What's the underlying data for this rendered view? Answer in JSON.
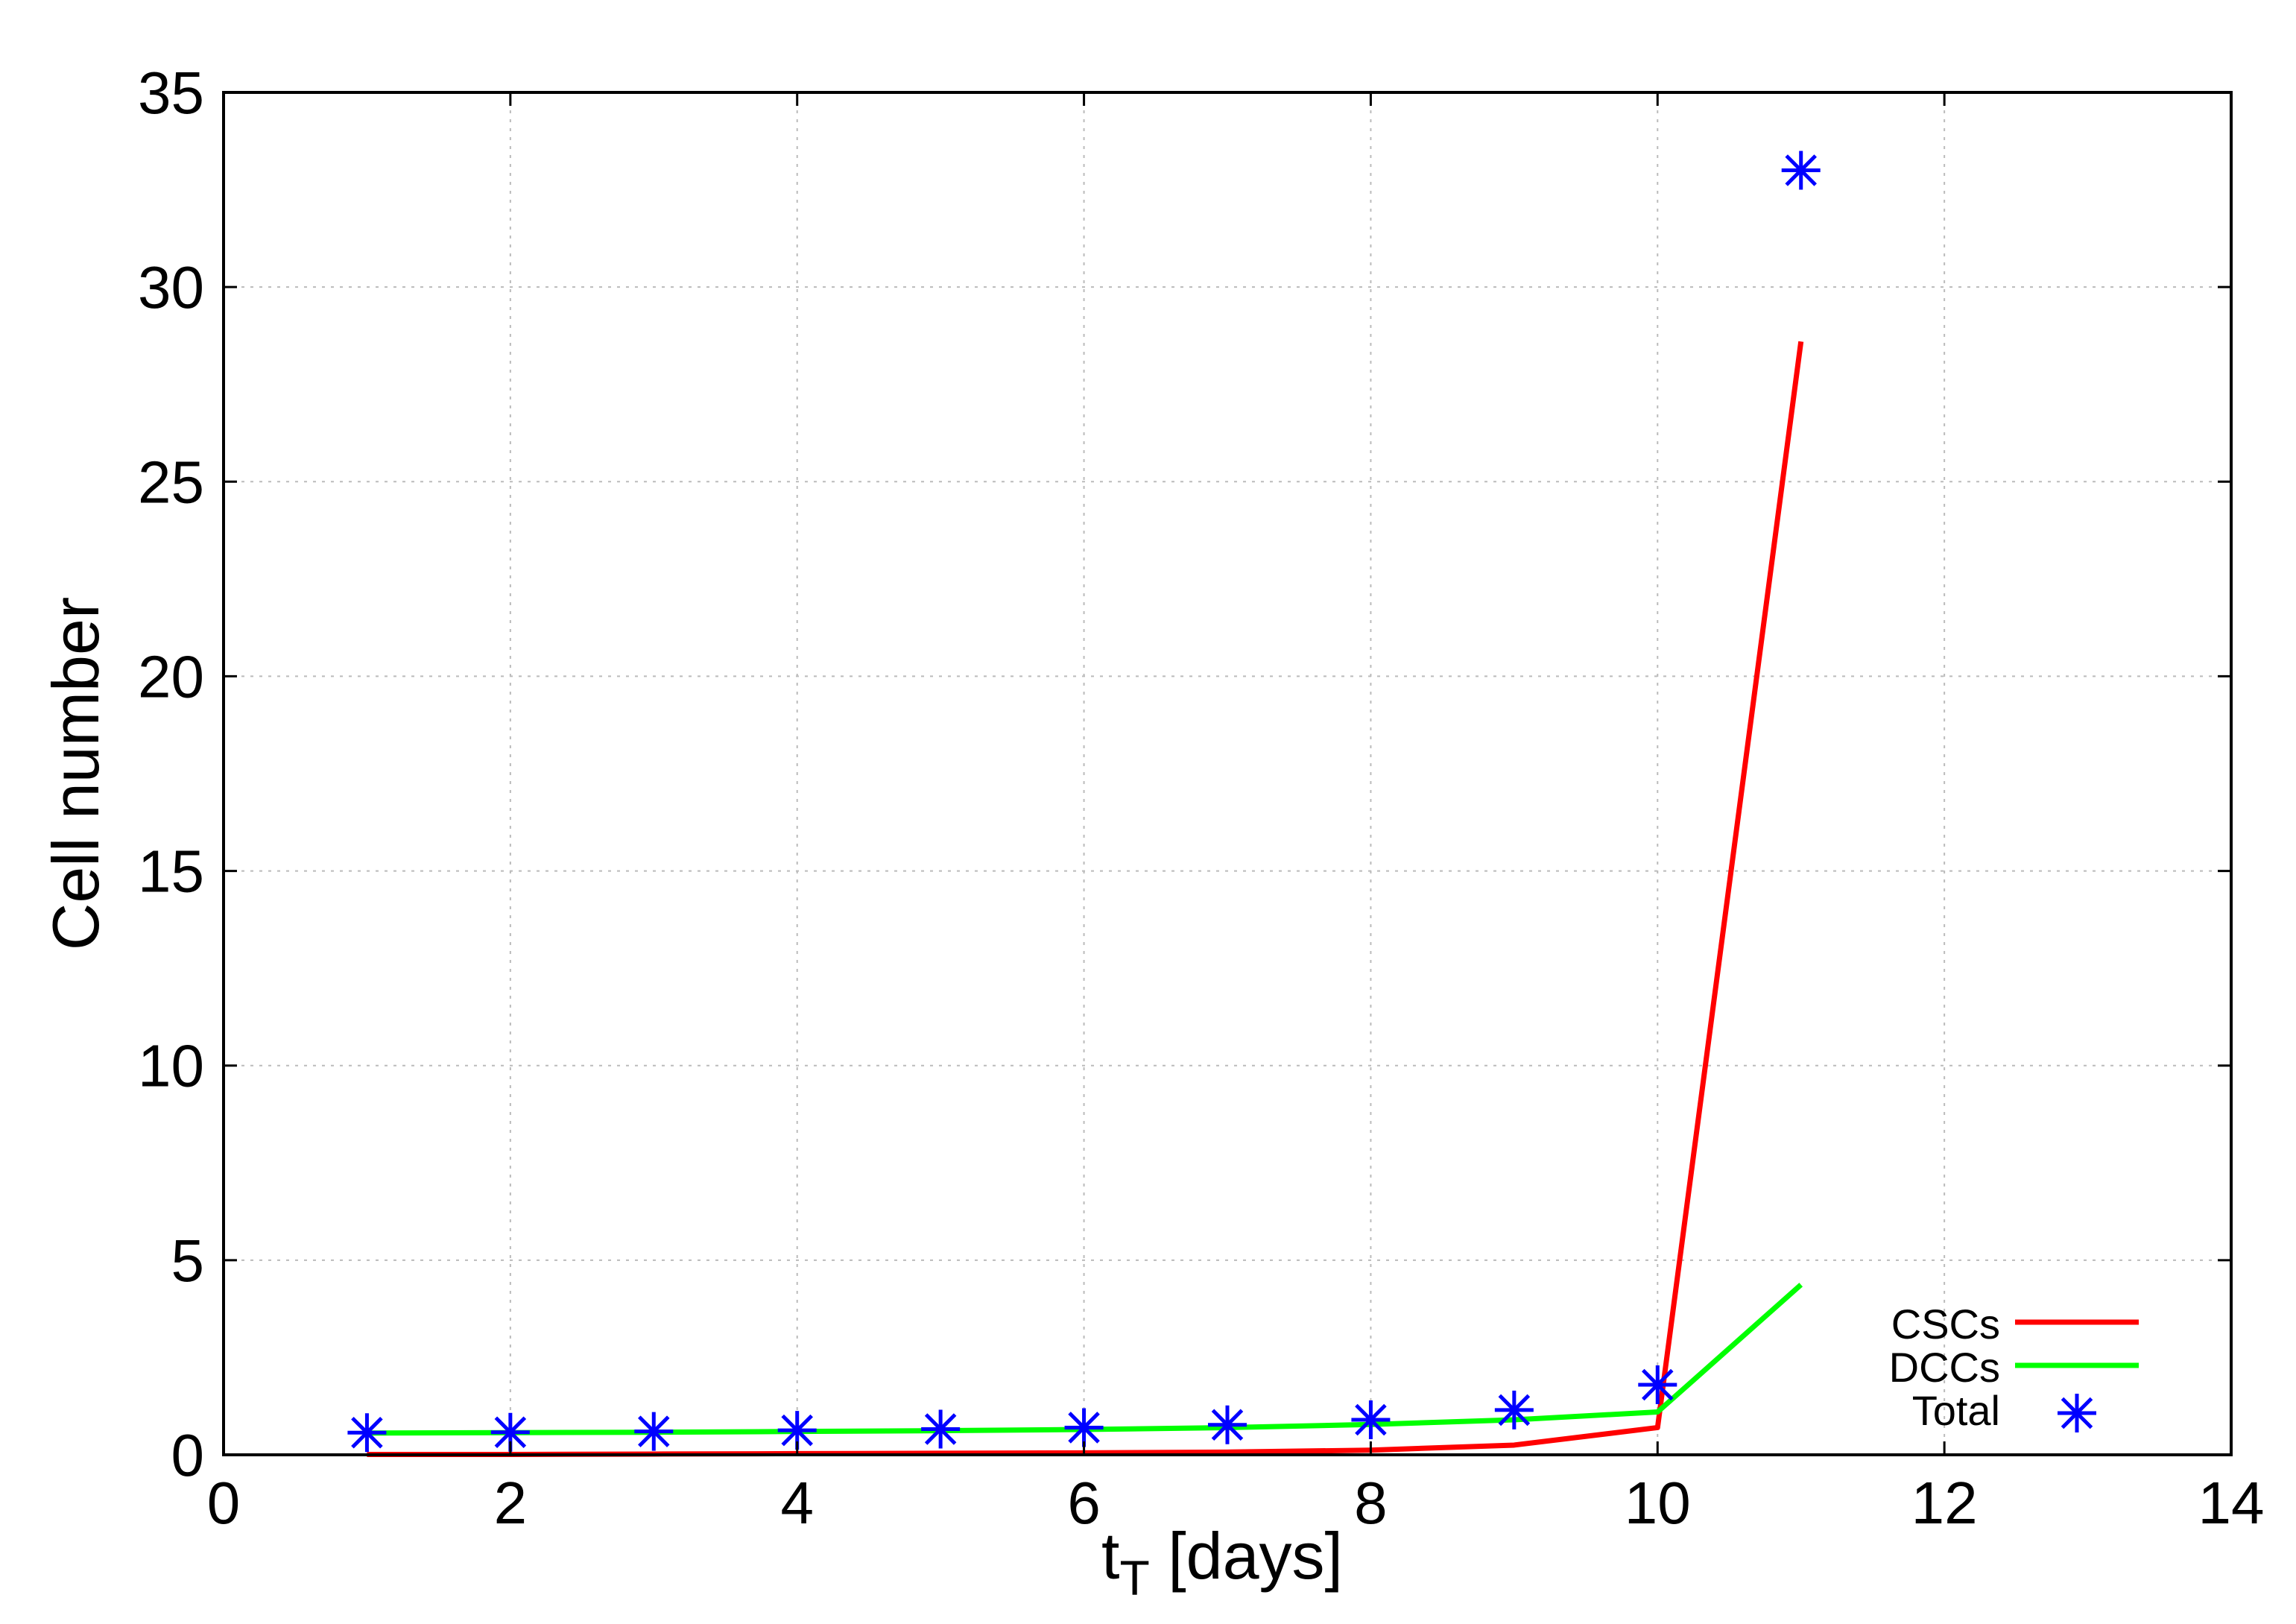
{
  "chart_data": {
    "type": "line",
    "title": "",
    "xlabel": "t",
    "xlabel_sub": "T",
    "xlabel_suffix": " [days]",
    "ylabel": "Cell number",
    "xlim": [
      0,
      14
    ],
    "ylim": [
      0,
      35
    ],
    "xticks": [
      0,
      2,
      4,
      6,
      8,
      10,
      12,
      14
    ],
    "yticks": [
      0,
      5,
      10,
      15,
      20,
      25,
      30,
      35
    ],
    "grid": true,
    "legend_placement": "bottom-right",
    "x": [
      1,
      2,
      3,
      4,
      5,
      6,
      7,
      8,
      9,
      10,
      11
    ],
    "series": [
      {
        "name": "CSCs",
        "style": "line",
        "color": "#ff0000",
        "values": [
          0.01,
          0.01,
          0.02,
          0.03,
          0.04,
          0.05,
          0.07,
          0.12,
          0.25,
          0.7,
          28.6
        ]
      },
      {
        "name": "DCCs",
        "style": "line",
        "color": "#00ff00",
        "values": [
          0.56,
          0.57,
          0.58,
          0.6,
          0.62,
          0.65,
          0.7,
          0.78,
          0.9,
          1.1,
          4.37
        ]
      },
      {
        "name": "Total",
        "style": "points",
        "marker": "asterisk",
        "color": "#0000ff",
        "values": [
          0.57,
          0.58,
          0.6,
          0.63,
          0.66,
          0.7,
          0.77,
          0.9,
          1.15,
          1.8,
          33.0
        ]
      }
    ]
  }
}
